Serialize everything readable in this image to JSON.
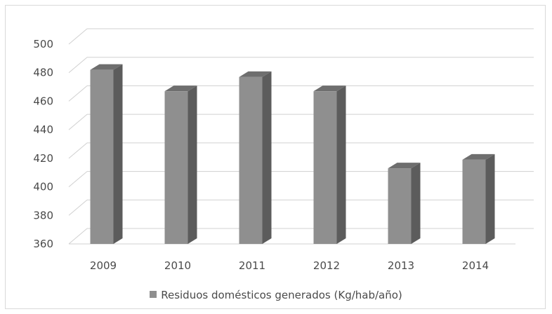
{
  "chart_data": {
    "type": "bar",
    "style": "3d-columns",
    "categories": [
      "2009",
      "2010",
      "2011",
      "2012",
      "2013",
      "2014"
    ],
    "series": [
      {
        "name": "Residuos domésticos generados (Kg/hab/año)",
        "values": [
          482,
          467,
          477,
          467,
          413,
          419
        ]
      }
    ],
    "title": "",
    "xlabel": "",
    "ylabel": "",
    "ylim": [
      360,
      500
    ],
    "yticks": [
      "360",
      "380",
      "400",
      "420",
      "440",
      "460",
      "480",
      "500"
    ],
    "grid": true,
    "legend_position": "bottom",
    "colors": {
      "bar_front": "#8f8f8f",
      "bar_side": "#5c5c5c",
      "bar_top": "#6e6e6e",
      "grid": "#d0d0d0",
      "text": "#4a4a4a"
    }
  }
}
